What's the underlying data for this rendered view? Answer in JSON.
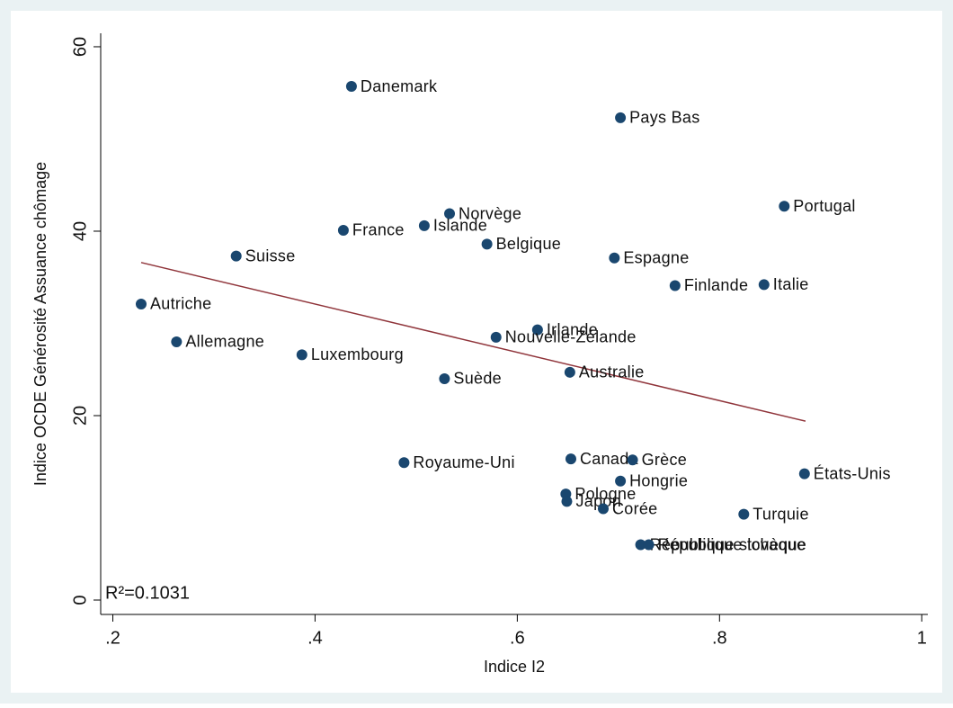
{
  "chart_data": {
    "type": "scatter",
    "xlabel": "Indice I2",
    "ylabel": "Indice OCDE Générosité Assuance chômage",
    "annotation": "R²=0.1031",
    "labels": [
      "Danemark",
      "Pays Bas",
      "Portugal",
      "Norvège",
      "Islande",
      "France",
      "Belgique",
      "Suisse",
      "Espagne",
      "Finlande",
      "Italie",
      "Autriche",
      "Irlande",
      "Nouvelle-Zélande",
      "Allemagne",
      "Luxembourg",
      "Australie",
      "Suède",
      "Canada",
      "Grèce",
      "Royaume-Uni",
      "États-Unis",
      "Hongrie",
      "Pologne",
      "Japon",
      "Corée",
      "Turquie",
      "République slovaque",
      "République tchèque"
    ],
    "x": [
      0.436,
      0.702,
      0.864,
      0.533,
      0.508,
      0.428,
      0.57,
      0.322,
      0.696,
      0.756,
      0.844,
      0.228,
      0.62,
      0.579,
      0.263,
      0.387,
      0.652,
      0.528,
      0.653,
      0.714,
      0.488,
      0.884,
      0.702,
      0.648,
      0.649,
      0.685,
      0.824,
      0.722,
      0.73
    ],
    "y": [
      55.7,
      52.3,
      42.7,
      41.9,
      40.6,
      40.1,
      38.6,
      37.3,
      37.1,
      34.1,
      34.2,
      32.1,
      29.3,
      28.5,
      28.0,
      26.6,
      24.7,
      24.0,
      15.3,
      15.2,
      14.9,
      13.7,
      12.9,
      11.5,
      10.7,
      9.9,
      9.3,
      6.0,
      6.0
    ],
    "color": "#1a476f",
    "fit": {
      "x": [
        0.228,
        0.885
      ],
      "y": [
        36.6,
        19.4
      ],
      "color": "#90353b"
    },
    "xlim": [
      0.188,
      1.006
    ],
    "ylim": [
      -1.56,
      61.46
    ],
    "xticks": [
      {
        "value": 0.2,
        "label": ".2"
      },
      {
        "value": 0.4,
        "label": ".4"
      },
      {
        "value": 0.6,
        "label": ".6"
      },
      {
        "value": 0.8,
        "label": ".8"
      },
      1
    ],
    "yticks": [
      0,
      20,
      40,
      60
    ]
  }
}
